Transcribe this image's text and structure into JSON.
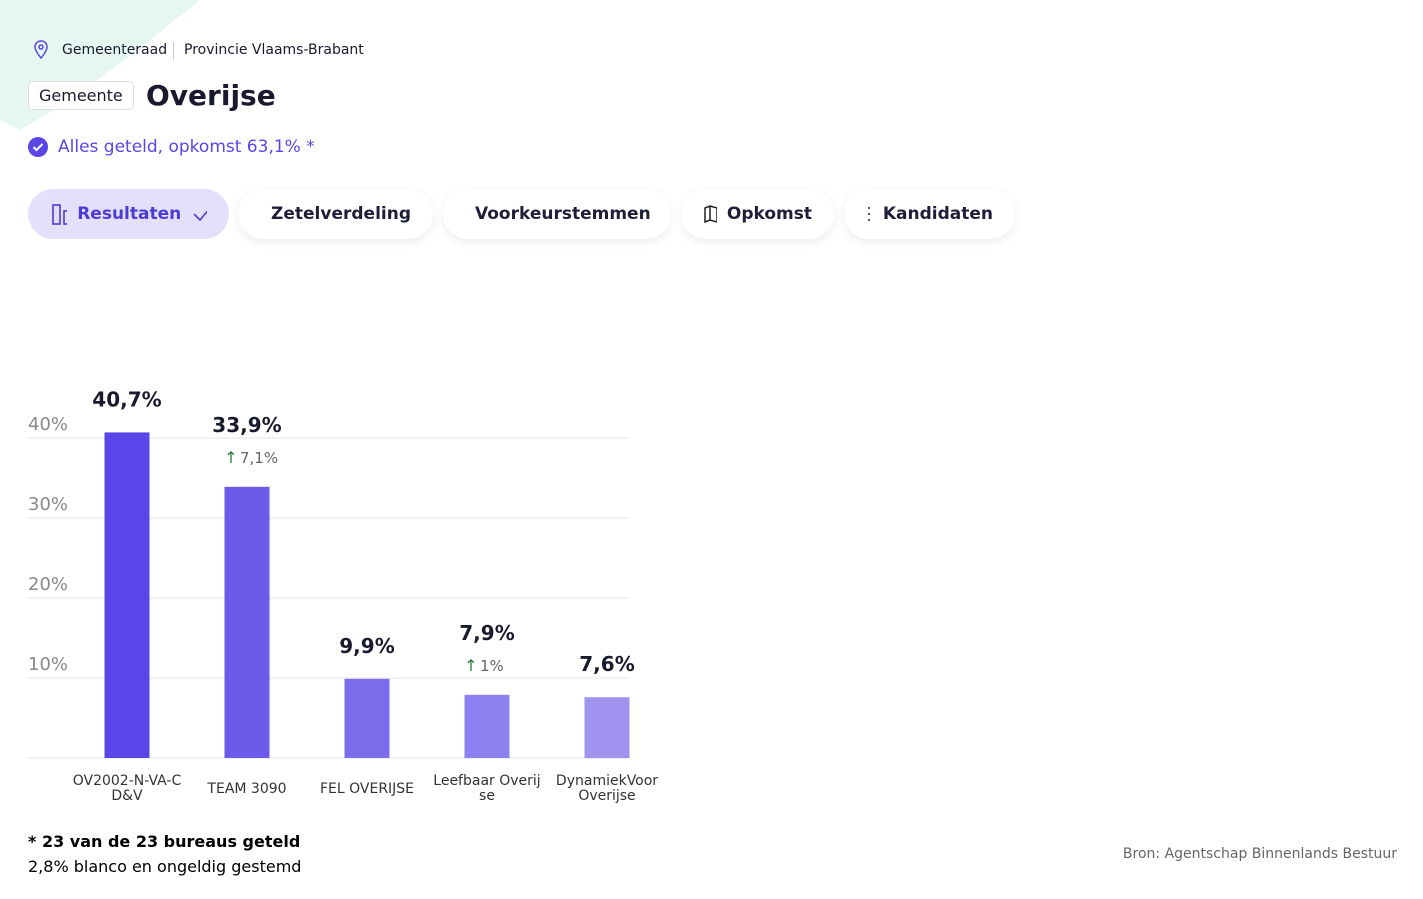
{
  "header": {
    "breadcrumb": [
      "Gemeenteraad",
      "Provincie Vlaams-Brabant"
    ],
    "badge": "Gemeente",
    "title": "Overijse",
    "status": "Alles geteld, opkomst 63,1% *"
  },
  "tabs": [
    "Resultaten",
    "Zetelverdeling",
    "Voorkeurstemmen",
    "Opkomst",
    "Kandidaten"
  ],
  "chart_data": {
    "type": "bar",
    "categories": [
      "OV2002-N-VA-CD&V",
      "TEAM 3090",
      "FEL OVERIJSE",
      "Leefbaar Overijse",
      "DynamiekVoorOverijse"
    ],
    "values": [
      40.7,
      33.9,
      9.9,
      7.9,
      7.6
    ],
    "value_labels": [
      "40,7%",
      "33,9%",
      "9,9%",
      "7,9%",
      "7,6%"
    ],
    "change_values": [
      null,
      7.1,
      null,
      1,
      null
    ],
    "change_labels": [
      null,
      "7,1%",
      null,
      "1%",
      null
    ],
    "colors": [
      "#5b45e8",
      "#6c5aea",
      "#7c6cec",
      "#8e80ee",
      "#a094f0"
    ],
    "ylim": [
      0,
      45
    ],
    "yticks": [
      {
        "value": 10,
        "label": "10%"
      },
      {
        "value": 20,
        "label": "20%"
      },
      {
        "value": 30,
        "label": "30%"
      },
      {
        "value": 40,
        "label": "40%"
      }
    ],
    "grid": true
  },
  "footer": {
    "note": "* 23 van de 23 bureaus geteld",
    "blank": "2,8% blanco en ongeldig gestemd",
    "source": "Bron: Agentschap Binnenlands Bestuur"
  }
}
